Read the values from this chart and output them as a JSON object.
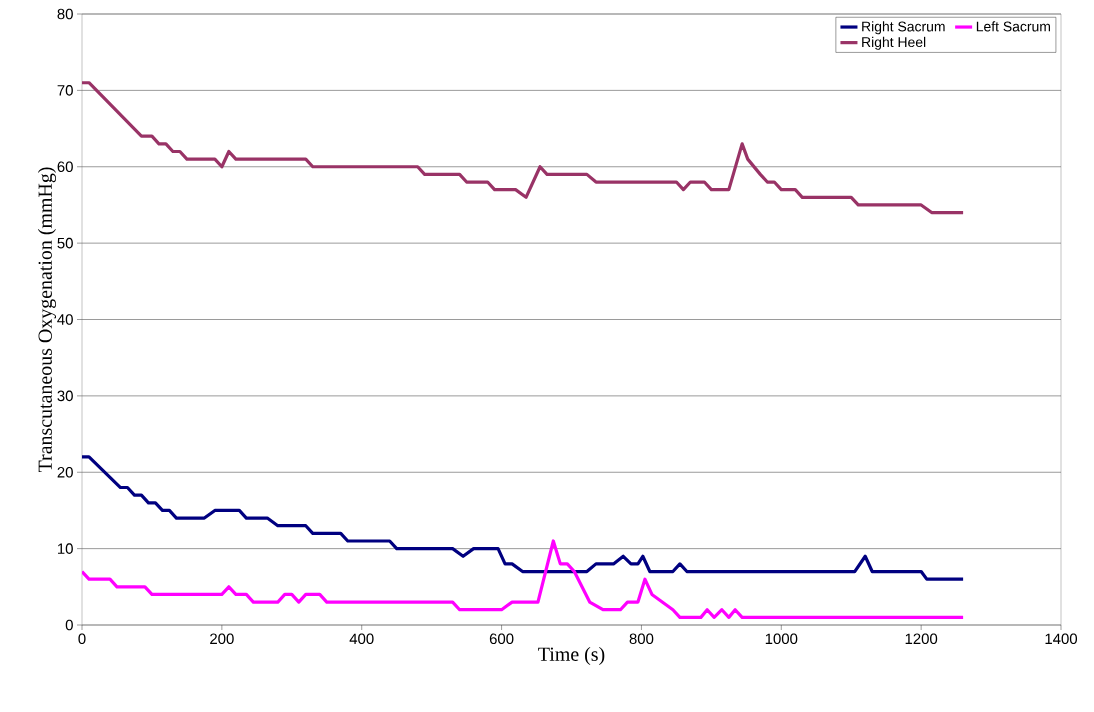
{
  "chart_data": {
    "type": "line",
    "xlabel": "Time (s)",
    "ylabel": "Transcutaneous Oxygenation (mmHg)",
    "xlim": [
      0,
      1400
    ],
    "xticks": [
      0,
      200,
      400,
      600,
      800,
      1000,
      1200,
      1400
    ],
    "ylim": [
      0,
      80
    ],
    "yticks": [
      0,
      10,
      20,
      30,
      40,
      50,
      60,
      70,
      80
    ],
    "grid": "y",
    "legend": "top right",
    "marker": "none",
    "line_style": "solid",
    "series": [
      {
        "name": "Right Sacrum",
        "color": "#000080",
        "x": [
          0,
          10,
          55,
          65,
          75,
          85,
          95,
          105,
          115,
          125,
          135,
          175,
          190,
          225,
          235,
          265,
          280,
          320,
          330,
          370,
          380,
          440,
          450,
          530,
          545,
          560,
          595,
          605,
          615,
          630,
          722,
          735,
          760,
          774,
          785,
          795,
          802,
          812,
          845,
          855,
          865,
          1105,
          1120,
          1130,
          1200,
          1208,
          1260
        ],
        "values": [
          22,
          22,
          18,
          18,
          17,
          17,
          16,
          16,
          15,
          15,
          14,
          14,
          15,
          15,
          14,
          14,
          13,
          13,
          12,
          12,
          11,
          11,
          10,
          10,
          9,
          10,
          10,
          8,
          8,
          7,
          7,
          8,
          8,
          9,
          8,
          8,
          9,
          7,
          7,
          8,
          7,
          7,
          9,
          7,
          7,
          6,
          6
        ]
      },
      {
        "name": "Left Sacrum",
        "color": "#ff00ff",
        "x": [
          0,
          10,
          30,
          40,
          50,
          80,
          90,
          100,
          200,
          210,
          220,
          235,
          245,
          280,
          290,
          300,
          310,
          320,
          340,
          350,
          530,
          540,
          600,
          615,
          645,
          652,
          674,
          684,
          694,
          704,
          715,
          726,
          745,
          770,
          780,
          795,
          805,
          815,
          830,
          845,
          855,
          885,
          894,
          904,
          915,
          925,
          934,
          944,
          1260
        ],
        "values": [
          7,
          6,
          6,
          6,
          5,
          5,
          5,
          4,
          4,
          5,
          4,
          4,
          3,
          3,
          4,
          4,
          3,
          4,
          4,
          3,
          3,
          2,
          2,
          3,
          3,
          3,
          11,
          8,
          8,
          7,
          5,
          3,
          2,
          2,
          3,
          3,
          6,
          4,
          3,
          2,
          1,
          1,
          2,
          1,
          2,
          1,
          2,
          1,
          1
        ]
      },
      {
        "name": "Right Heel",
        "color": "#993366",
        "x": [
          0,
          10,
          85,
          100,
          110,
          120,
          130,
          140,
          150,
          190,
          200,
          210,
          220,
          320,
          330,
          470,
          480,
          490,
          530,
          540,
          550,
          580,
          590,
          620,
          635,
          655,
          665,
          700,
          722,
          735,
          840,
          850,
          860,
          870,
          890,
          900,
          925,
          944,
          952,
          970,
          980,
          990,
          1000,
          1020,
          1030,
          1090,
          1100,
          1110,
          1200,
          1215,
          1260
        ],
        "values": [
          71,
          71,
          64,
          64,
          63,
          63,
          62,
          62,
          61,
          61,
          60,
          62,
          61,
          61,
          60,
          60,
          60,
          59,
          59,
          59,
          58,
          58,
          57,
          57,
          56,
          60,
          59,
          59,
          59,
          58,
          58,
          58,
          57,
          58,
          58,
          57,
          57,
          63,
          61,
          59,
          58,
          58,
          57,
          57,
          56,
          56,
          56,
          55,
          55,
          54,
          54
        ]
      }
    ]
  }
}
